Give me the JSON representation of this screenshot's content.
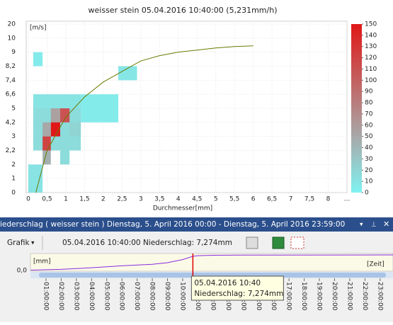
{
  "chart_data": [
    {
      "type": "heatmap",
      "title": "weisser stein 05.04.2016 10:40:00 (5,231mm/h)",
      "ylabel": "[m/s]",
      "xlabel": "Durchmesser[mm]",
      "xlim": [
        0,
        8.5
      ],
      "xticks": [
        0,
        {
          "value": 0.5,
          "label": "0,5"
        },
        1,
        {
          "value": 1.5,
          "label": "1,5"
        },
        2,
        {
          "value": 2.5,
          "label": "2,5"
        },
        3,
        {
          "value": 3.5,
          "label": "3,5"
        },
        4,
        {
          "value": 4.5,
          "label": "4,5"
        },
        5,
        {
          "value": 5.5,
          "label": "5,5"
        },
        6,
        {
          "value": 6.5,
          "label": "6,5"
        },
        7,
        {
          "value": 7.5,
          "label": "7,5"
        },
        8,
        {
          "value": 8.5,
          "label": "..."
        }
      ],
      "yticks": [
        0,
        1,
        2,
        {
          "value": 2.2,
          "label": "2,2"
        },
        3,
        {
          "value": 4.2,
          "label": "4,2"
        },
        5,
        {
          "value": 6.6,
          "label": "6,6"
        },
        {
          "value": 7.4,
          "label": "7,4"
        },
        {
          "value": 8.2,
          "label": "8,2"
        },
        9,
        10,
        20
      ],
      "clim": [
        0,
        150
      ],
      "cticks": [
        0,
        10,
        20,
        30,
        40,
        50,
        60,
        70,
        80,
        90,
        100,
        110,
        120,
        130,
        140,
        150
      ],
      "colormap": [
        [
          0,
          "#80f2f2"
        ],
        [
          50,
          "#a8a8a8"
        ],
        [
          150,
          "#e01818"
        ]
      ],
      "cells": [
        [
          0.13,
          0.38,
          8.2,
          9,
          5
        ],
        [
          2.4,
          2.9,
          7.4,
          8.2,
          8
        ],
        [
          0.13,
          1.4,
          5,
          6.6,
          10
        ],
        [
          1.4,
          2.4,
          4.2,
          6.6,
          5
        ],
        [
          0.13,
          1.4,
          2.2,
          5,
          15
        ],
        [
          0,
          0.38,
          0,
          2,
          10
        ],
        [
          0.85,
          1.1,
          2,
          3,
          15
        ],
        [
          1.1,
          1.4,
          3,
          4.2,
          20
        ],
        [
          0.6,
          0.85,
          4.2,
          5,
          55
        ],
        [
          0.85,
          1.1,
          4.2,
          5,
          110
        ],
        [
          0.6,
          0.85,
          3,
          4.2,
          150
        ],
        [
          0.38,
          0.6,
          3,
          4.2,
          50
        ],
        [
          0.38,
          0.6,
          2.2,
          3,
          120
        ],
        [
          0.38,
          0.6,
          2,
          2.2,
          45
        ]
      ],
      "fit": {
        "color": "#6b7a00",
        "x": [
          0.2,
          0.5,
          1,
          1.5,
          2,
          2.5,
          3,
          3.5,
          4,
          4.5,
          5,
          5.5,
          6
        ],
        "y": [
          0,
          2.2,
          4.5,
          6.3,
          7.3,
          7.9,
          8.5,
          8.8,
          9,
          9.15,
          9.3,
          9.4,
          9.45
        ]
      }
    },
    {
      "type": "line",
      "ylabel": "[mm]",
      "xlabel": "[Zeit]",
      "color": "#8a2be2",
      "xlim": [
        0,
        24
      ],
      "ylim": [
        0,
        8
      ],
      "yticks": [
        {
          "value": 0,
          "label": "0,0"
        }
      ],
      "xticks": [
        {
          "value": 1,
          "label": "01:00:00"
        },
        {
          "value": 2,
          "label": "02:00:00"
        },
        {
          "value": 3,
          "label": "03:00:00"
        },
        {
          "value": 4,
          "label": "04:00:00"
        },
        {
          "value": 5,
          "label": "05:00:00"
        },
        {
          "value": 6,
          "label": "06:00:00"
        },
        {
          "value": 7,
          "label": "07:00:00"
        },
        {
          "value": 8,
          "label": "08:00:00"
        },
        {
          "value": 9,
          "label": "09:00:00"
        },
        {
          "value": 10,
          "label": "10:00:00"
        },
        {
          "value": 11,
          "label": "11:00:00"
        },
        {
          "value": 12,
          "label": "12:00:00"
        },
        {
          "value": 13,
          "label": "13:00:00"
        },
        {
          "value": 14,
          "label": "14:00:00"
        },
        {
          "value": 15,
          "label": "15:00:00"
        },
        {
          "value": 16,
          "label": "16:00:00"
        },
        {
          "value": 17,
          "label": "17:00:00"
        },
        {
          "value": 18,
          "label": "18:00:00"
        },
        {
          "value": 19,
          "label": "19:00:00"
        },
        {
          "value": 20,
          "label": "20:00:00"
        },
        {
          "value": 21,
          "label": "21:00:00"
        },
        {
          "value": 22,
          "label": "22:00:00"
        },
        {
          "value": 23,
          "label": "23:00:00"
        }
      ],
      "x": [
        0,
        2,
        4,
        6,
        8,
        9,
        9.5,
        10,
        10.67,
        11,
        12,
        14,
        24
      ],
      "values": [
        0.2,
        0.6,
        1.4,
        2.4,
        3.2,
        4,
        4.8,
        5.6,
        7.274,
        7.6,
        7.8,
        7.9,
        8
      ],
      "cursor": 10.67
    }
  ],
  "panel": {
    "title": "iederschlag ( weisser stein ) Dienstag, 5. April 2016 00:00 - Dienstag, 5. April 2016 23:59:00",
    "menu": "Grafik",
    "status": "05.04.2016 10:40:00 Niederschlag: 7,274mm",
    "tooltip": [
      "05.04.2016 10:40",
      "Niederschlag: 7,274mm"
    ]
  }
}
